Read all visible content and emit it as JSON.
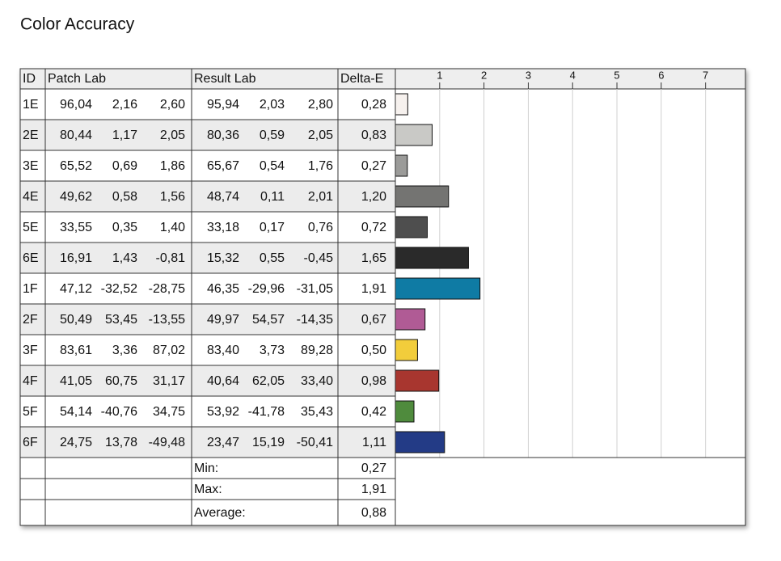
{
  "title": "Color Accuracy",
  "table": {
    "headers": [
      "ID",
      "Patch Lab",
      "Result Lab",
      "Delta-E"
    ],
    "rows": [
      {
        "id": "1E",
        "patch": [
          "96,04",
          "2,16",
          "2,60"
        ],
        "result": [
          "95,94",
          "2,03",
          "2,80"
        ],
        "delta": 0.28,
        "delta_label": "0,28",
        "color": "#f6f1ee"
      },
      {
        "id": "2E",
        "patch": [
          "80,44",
          "1,17",
          "2,05"
        ],
        "result": [
          "80,36",
          "0,59",
          "2,05"
        ],
        "delta": 0.83,
        "delta_label": "0,83",
        "color": "#c9c9c6"
      },
      {
        "id": "3E",
        "patch": [
          "65,52",
          "0,69",
          "1,86"
        ],
        "result": [
          "65,67",
          "0,54",
          "1,76"
        ],
        "delta": 0.27,
        "delta_label": "0,27",
        "color": "#9b9b99"
      },
      {
        "id": "4E",
        "patch": [
          "49,62",
          "0,58",
          "1,56"
        ],
        "result": [
          "48,74",
          "0,11",
          "2,01"
        ],
        "delta": 1.2,
        "delta_label": "1,20",
        "color": "#747472"
      },
      {
        "id": "5E",
        "patch": [
          "33,55",
          "0,35",
          "1,40"
        ],
        "result": [
          "33,18",
          "0,17",
          "0,76"
        ],
        "delta": 0.72,
        "delta_label": "0,72",
        "color": "#4e4e4e"
      },
      {
        "id": "6E",
        "patch": [
          "16,91",
          "1,43",
          "-0,81"
        ],
        "result": [
          "15,32",
          "0,55",
          "-0,45"
        ],
        "delta": 1.65,
        "delta_label": "1,65",
        "color": "#2a2a2a"
      },
      {
        "id": "1F",
        "patch": [
          "47,12",
          "-32,52",
          "-28,75"
        ],
        "result": [
          "46,35",
          "-29,96",
          "-31,05"
        ],
        "delta": 1.91,
        "delta_label": "1,91",
        "color": "#0f7ba4"
      },
      {
        "id": "2F",
        "patch": [
          "50,49",
          "53,45",
          "-13,55"
        ],
        "result": [
          "49,97",
          "54,57",
          "-14,35"
        ],
        "delta": 0.67,
        "delta_label": "0,67",
        "color": "#b05b95"
      },
      {
        "id": "3F",
        "patch": [
          "83,61",
          "3,36",
          "87,02"
        ],
        "result": [
          "83,40",
          "3,73",
          "89,28"
        ],
        "delta": 0.5,
        "delta_label": "0,50",
        "color": "#f2cd3b"
      },
      {
        "id": "4F",
        "patch": [
          "41,05",
          "60,75",
          "31,17"
        ],
        "result": [
          "40,64",
          "62,05",
          "33,40"
        ],
        "delta": 0.98,
        "delta_label": "0,98",
        "color": "#a8362f"
      },
      {
        "id": "5F",
        "patch": [
          "54,14",
          "-40,76",
          "34,75"
        ],
        "result": [
          "53,92",
          "-41,78",
          "35,43"
        ],
        "delta": 0.42,
        "delta_label": "0,42",
        "color": "#4f8b3d"
      },
      {
        "id": "6F",
        "patch": [
          "24,75",
          "13,78",
          "-49,48"
        ],
        "result": [
          "23,47",
          "15,19",
          "-50,41"
        ],
        "delta": 1.11,
        "delta_label": "1,11",
        "color": "#233b86"
      }
    ],
    "summary": [
      {
        "label": "Min:",
        "value": "0,27"
      },
      {
        "label": "Max:",
        "value": "1,91"
      },
      {
        "label": "Average:",
        "value": "0,88"
      }
    ]
  },
  "scale": {
    "xlim": [
      0,
      7.9
    ],
    "xticks": [
      1,
      2,
      3,
      4,
      5,
      6,
      7
    ]
  }
}
